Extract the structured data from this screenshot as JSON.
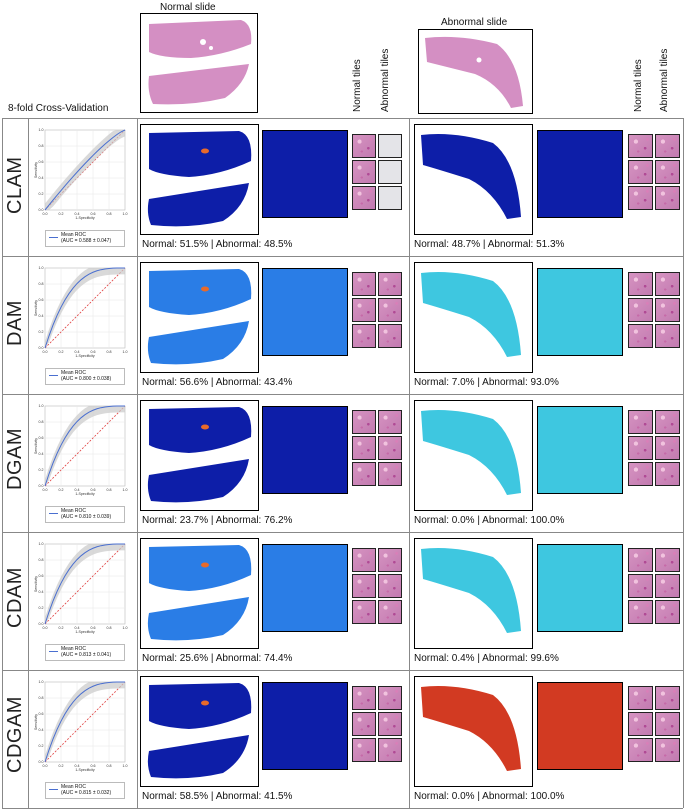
{
  "header": {
    "cross_validation": "8-fold Cross-Validation",
    "normal_slide": "Normal slide",
    "abnormal_slide": "Abnormal slide",
    "normal_tiles": "Normal tiles",
    "abnormal_tiles": "Abnormal tiles"
  },
  "colors": {
    "slide_pink": "#d48fc3",
    "heat_low": "#0a1aa6",
    "heat_mid": "#3fd6e8",
    "heat_high": "#e8321e"
  },
  "roc_axis": {
    "xlabel": "1-Specificity",
    "ylabel": "Sensitivity",
    "ticks": [
      "0.0",
      "0.2",
      "0.4",
      "0.6",
      "0.8",
      "1.0"
    ]
  },
  "rows": [
    {
      "method": "CLAM",
      "legend": "Mean ROC",
      "auc": "(AUC = 0.588 ± 0.047)",
      "normal_caption": "Normal: 51.5% | Abnormal: 48.5%",
      "abnormal_caption": "Normal: 48.7% | Abnormal: 51.3%"
    },
    {
      "method": "DAM",
      "legend": "Mean ROC",
      "auc": "(AUC = 0.800 ± 0.038)",
      "normal_caption": "Normal: 56.6% | Abnormal: 43.4%",
      "abnormal_caption": "Normal: 7.0% | Abnormal: 93.0%"
    },
    {
      "method": "DGAM",
      "legend": "Mean ROC",
      "auc": "(AUC = 0.810 ± 0.039)",
      "normal_caption": "Normal: 23.7% | Abnormal: 76.2%",
      "abnormal_caption": "Normal: 0.0% | Abnormal: 100.0%"
    },
    {
      "method": "CDAM",
      "legend": "Mean ROC",
      "auc": "(AUC = 0.813 ± 0.041)",
      "normal_caption": "Normal: 25.6% | Abnormal: 74.4%",
      "abnormal_caption": "Normal: 0.4% | Abnormal: 99.6%"
    },
    {
      "method": "CDGAM",
      "legend": "Mean ROC",
      "auc": "(AUC = 0.815 ± 0.032)",
      "normal_caption": "Normal: 58.5% | Abnormal: 41.5%",
      "abnormal_caption": "Normal: 0.0% | Abnormal: 100.0%"
    }
  ]
}
